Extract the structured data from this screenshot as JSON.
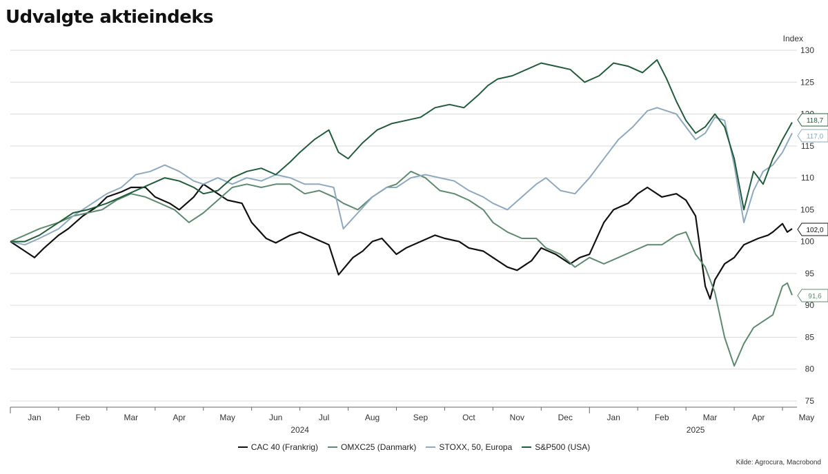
{
  "title": "Udvalgte aktieindeks",
  "source": "Kilde: Agrocura, Macrobond",
  "chart_data": {
    "type": "line",
    "title": "Udvalgte aktieindeks",
    "ylabel": "Index",
    "ylim": [
      75,
      130
    ],
    "yticks": [
      75,
      80,
      85,
      90,
      95,
      100,
      105,
      110,
      115,
      120,
      125,
      130
    ],
    "xlim": [
      0,
      16.3
    ],
    "month_labels": [
      "Jan",
      "Feb",
      "Mar",
      "Apr",
      "May",
      "Jun",
      "Jul",
      "Aug",
      "Sep",
      "Oct",
      "Nov",
      "Dec",
      "Jan",
      "Feb",
      "Mar",
      "Apr",
      "May"
    ],
    "year_labels": [
      {
        "label": "2024",
        "x": 6
      },
      {
        "label": "2025",
        "x": 14.2
      }
    ],
    "grid": true,
    "legend_position": "bottom",
    "series": [
      {
        "name": "CAC 40 (Frankrig)",
        "color": "#111111",
        "end_label": "102,0",
        "x": [
          0,
          0.3,
          0.5,
          0.7,
          1,
          1.2,
          1.5,
          1.8,
          2,
          2.3,
          2.5,
          2.8,
          3,
          3.3,
          3.5,
          3.8,
          4,
          4.3,
          4.5,
          4.8,
          5,
          5.3,
          5.5,
          5.8,
          6,
          6.3,
          6.6,
          6.8,
          7.1,
          7.3,
          7.5,
          7.7,
          8,
          8.2,
          8.5,
          8.8,
          9,
          9.3,
          9.5,
          9.8,
          10,
          10.3,
          10.5,
          10.8,
          11,
          11.3,
          11.6,
          11.8,
          12,
          12.3,
          12.5,
          12.8,
          13,
          13.2,
          13.5,
          13.8,
          14,
          14.2,
          14.4,
          14.5,
          14.6,
          14.8,
          15,
          15.2,
          15.5,
          15.7,
          15.8,
          16,
          16.1,
          16.2
        ],
        "values": [
          100,
          98.5,
          97.5,
          99,
          101,
          102,
          104,
          105.5,
          107,
          107.8,
          108.5,
          108.5,
          107,
          106,
          105,
          107,
          109,
          107.5,
          106.5,
          106,
          103,
          100.5,
          99.8,
          101,
          101.5,
          100.5,
          99.5,
          94.8,
          97.5,
          98.5,
          100,
          100.5,
          98,
          99,
          100,
          101,
          100.5,
          100,
          99,
          98.5,
          97.5,
          96,
          95.5,
          97,
          99,
          98,
          96.5,
          97.5,
          98,
          103,
          105,
          106,
          107.5,
          108.5,
          107,
          107.5,
          106.5,
          104,
          93,
          91,
          94,
          96.5,
          97.5,
          99.5,
          100.5,
          101,
          101.5,
          102.8,
          101.5,
          102.0
        ]
      },
      {
        "name": "OMXC25 (Danmark)",
        "color": "#5b8a6e",
        "end_label": "91,6",
        "x": [
          0,
          0.3,
          0.6,
          1,
          1.3,
          1.6,
          1.9,
          2.2,
          2.5,
          2.8,
          3.1,
          3.4,
          3.7,
          4,
          4.3,
          4.6,
          4.9,
          5.2,
          5.5,
          5.8,
          6.1,
          6.4,
          6.7,
          6.9,
          7.2,
          7.5,
          7.8,
          8,
          8.3,
          8.6,
          8.9,
          9.2,
          9.5,
          9.8,
          10,
          10.3,
          10.6,
          10.9,
          11.1,
          11.4,
          11.7,
          12,
          12.3,
          12.6,
          12.9,
          13.2,
          13.5,
          13.8,
          14,
          14.2,
          14.4,
          14.6,
          14.8,
          15,
          15.2,
          15.4,
          15.6,
          15.8,
          16,
          16.1,
          16.2
        ],
        "values": [
          100,
          101,
          102,
          103,
          104,
          104.5,
          105,
          106.5,
          107.5,
          107,
          106,
          105,
          103,
          104.5,
          106.5,
          108.5,
          109,
          108.5,
          109,
          109,
          107.5,
          108,
          107,
          106,
          105,
          107,
          108.5,
          109,
          111,
          110,
          108,
          107.5,
          106.5,
          105,
          103,
          101.5,
          100.5,
          100.5,
          99,
          98,
          96,
          97.5,
          96.5,
          97.5,
          98.5,
          99.5,
          99.5,
          101,
          101.5,
          98,
          96,
          92,
          85,
          80.5,
          84,
          86.5,
          87.5,
          88.5,
          93,
          93.5,
          91.6
        ]
      },
      {
        "name": "STOXX, 50, Europa",
        "color": "#8da9c0",
        "end_label": "117,0",
        "x": [
          0,
          0.3,
          0.6,
          1,
          1.3,
          1.6,
          2,
          2.3,
          2.6,
          2.9,
          3.2,
          3.5,
          3.8,
          4,
          4.3,
          4.6,
          4.9,
          5.2,
          5.5,
          5.8,
          6.1,
          6.4,
          6.7,
          6.9,
          7.2,
          7.5,
          7.8,
          8,
          8.3,
          8.6,
          8.9,
          9.2,
          9.5,
          9.8,
          10,
          10.3,
          10.6,
          10.9,
          11.1,
          11.4,
          11.7,
          12,
          12.3,
          12.6,
          12.9,
          13.2,
          13.4,
          13.6,
          13.8,
          14,
          14.2,
          14.4,
          14.6,
          14.8,
          15,
          15.2,
          15.4,
          15.6,
          15.8,
          16,
          16.2
        ],
        "values": [
          100,
          99.5,
          100.5,
          102,
          104,
          105.5,
          107.5,
          108.5,
          110.5,
          111,
          112,
          111,
          109.5,
          109,
          110,
          109,
          110,
          109.5,
          110.5,
          110,
          109,
          109,
          108.5,
          102,
          104.5,
          107,
          108.5,
          108.5,
          110,
          110.5,
          110,
          109.5,
          108,
          107,
          106,
          105,
          107,
          109,
          110,
          108,
          107.5,
          110,
          113,
          116,
          118,
          120.5,
          121,
          120.5,
          120,
          118,
          116,
          117,
          119.5,
          119,
          112,
          103,
          108,
          111,
          112,
          114,
          117.0
        ]
      },
      {
        "name": "S&P500 (USA)",
        "color": "#1f5c3a",
        "end_label": "118,7",
        "x": [
          0,
          0.3,
          0.6,
          1,
          1.3,
          1.6,
          2,
          2.3,
          2.6,
          2.9,
          3.2,
          3.5,
          3.8,
          4,
          4.3,
          4.6,
          4.9,
          5.2,
          5.5,
          5.8,
          6,
          6.3,
          6.6,
          6.8,
          7,
          7.3,
          7.6,
          7.9,
          8.2,
          8.5,
          8.8,
          9.1,
          9.4,
          9.7,
          9.9,
          10.1,
          10.4,
          10.7,
          11,
          11.3,
          11.6,
          11.9,
          12.2,
          12.5,
          12.8,
          13.1,
          13.4,
          13.6,
          13.8,
          14,
          14.2,
          14.4,
          14.6,
          14.8,
          15,
          15.2,
          15.4,
          15.6,
          15.8,
          16,
          16.2
        ],
        "values": [
          100,
          100,
          101,
          103,
          104.5,
          105,
          106,
          107,
          108,
          109,
          110,
          109.5,
          108.5,
          107.5,
          108,
          110,
          111,
          111.5,
          110.5,
          112.5,
          114,
          116,
          117.5,
          114,
          113,
          115.5,
          117.5,
          118.5,
          119,
          119.5,
          121,
          121.5,
          121,
          123,
          124.5,
          125.5,
          126,
          127,
          128,
          127.5,
          127,
          125,
          126,
          128,
          127.5,
          126.5,
          128.5,
          125.5,
          122,
          119,
          117,
          118,
          120,
          118,
          113,
          105,
          111,
          109,
          113,
          116,
          118.7
        ]
      }
    ]
  }
}
